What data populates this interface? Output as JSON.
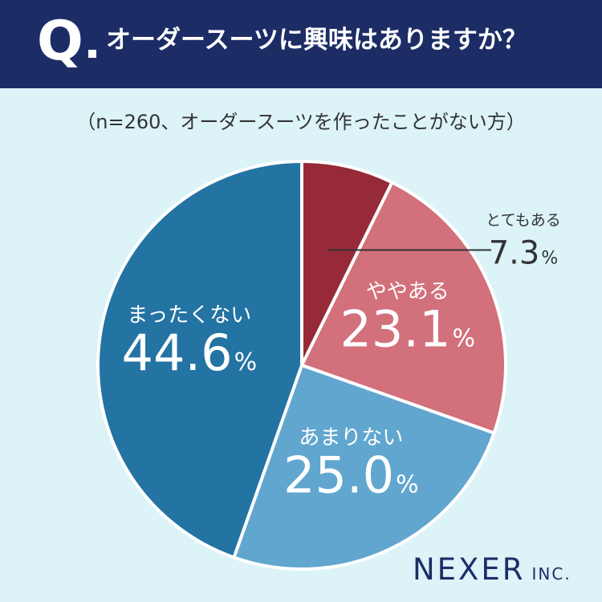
{
  "header": {
    "q_mark": "Q",
    "question": "オーダースーツに興味はありますか？"
  },
  "subtitle": "（n=260、オーダースーツを作ったことがない方）",
  "logo": {
    "main": "NEXER",
    "suffix": "INC."
  },
  "chart_data": {
    "type": "pie",
    "title": "オーダースーツに興味はありますか？",
    "subtitle": "（n=260、オーダースーツを作ったことがない方）",
    "unit": "%",
    "start_angle": "top",
    "direction": "clockwise",
    "categories": [
      "とてもある",
      "ややある",
      "あまりない",
      "まったくない"
    ],
    "values": [
      7.3,
      23.1,
      25.0,
      44.6
    ],
    "value_labels": [
      "7.3",
      "23.1",
      "25.0",
      "44.6"
    ],
    "colors": [
      "#962a38",
      "#d2707b",
      "#61a6cf",
      "#2373a3"
    ],
    "label_placement": [
      "outside",
      "inside",
      "inside",
      "inside"
    ]
  }
}
